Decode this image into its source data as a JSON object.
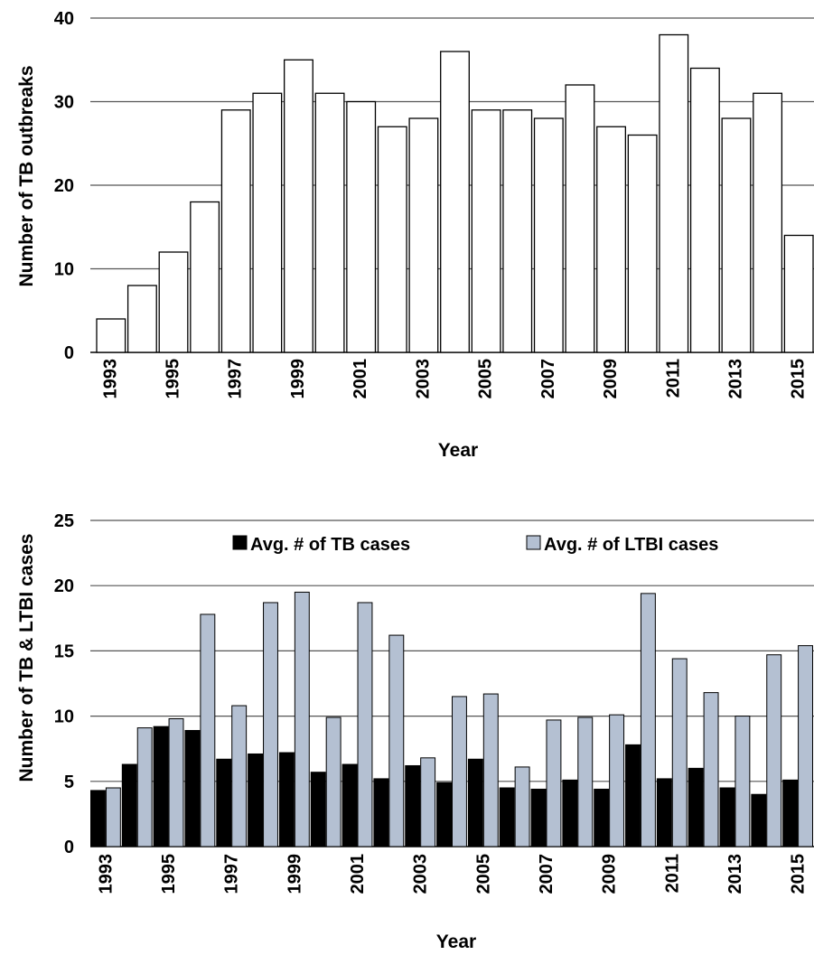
{
  "chart_data": [
    {
      "type": "bar",
      "title": "",
      "xlabel": "Year",
      "ylabel": "Number of TB outbreaks",
      "ylim": [
        0,
        40
      ],
      "yticks": [
        "0",
        "10",
        "20",
        "30",
        "40"
      ],
      "grid": true,
      "categories": [
        "1993",
        "1994",
        "1995",
        "1996",
        "1997",
        "1998",
        "1999",
        "2000",
        "2001",
        "2002",
        "2003",
        "2004",
        "2005",
        "2006",
        "2007",
        "2008",
        "2009",
        "2010",
        "2011",
        "2012",
        "2013",
        "2014",
        "2015"
      ],
      "xtick_labels": [
        "1993",
        "1995",
        "1997",
        "1999",
        "2001",
        "2003",
        "2005",
        "2007",
        "2009",
        "2011",
        "2013",
        "2015"
      ],
      "series": [
        {
          "values": [
            4,
            8,
            12,
            18,
            29,
            31,
            35,
            31,
            30,
            27,
            28,
            36,
            29,
            29,
            28,
            32,
            27,
            26,
            38,
            34,
            28,
            31,
            14
          ],
          "color": "#ffffff"
        }
      ]
    },
    {
      "type": "bar",
      "title": "",
      "xlabel": "Year",
      "ylabel": "Number of TB & LTBI cases",
      "ylim": [
        0,
        25
      ],
      "yticks": [
        "0",
        "5",
        "10",
        "15",
        "20",
        "25"
      ],
      "grid": true,
      "legend_position": "top",
      "categories": [
        "1993",
        "1994",
        "1995",
        "1996",
        "1997",
        "1998",
        "1999",
        "2000",
        "2001",
        "2002",
        "2003",
        "2004",
        "2005",
        "2006",
        "2007",
        "2008",
        "2009",
        "2010",
        "2011",
        "2012",
        "2013",
        "2014",
        "2015"
      ],
      "xtick_labels": [
        "1993",
        "1995",
        "1997",
        "1999",
        "2001",
        "2003",
        "2005",
        "2007",
        "2009",
        "2011",
        "2013",
        "2015"
      ],
      "series": [
        {
          "name": "Avg. # of TB cases",
          "color": "#000000",
          "values": [
            4.3,
            6.3,
            9.2,
            8.9,
            6.7,
            7.1,
            7.2,
            5.7,
            6.3,
            5.2,
            6.2,
            4.9,
            6.7,
            4.5,
            4.4,
            5.1,
            4.4,
            7.8,
            5.2,
            6.0,
            4.5,
            4.0,
            5.1
          ]
        },
        {
          "name": "Avg. # of LTBI cases",
          "color": "#b4c0d2",
          "values": [
            4.5,
            9.1,
            9.8,
            17.8,
            10.8,
            18.7,
            19.5,
            9.9,
            18.7,
            16.2,
            6.8,
            11.5,
            11.7,
            6.1,
            9.7,
            9.9,
            10.1,
            19.4,
            14.4,
            11.8,
            10.0,
            14.7,
            15.4
          ]
        }
      ]
    }
  ]
}
